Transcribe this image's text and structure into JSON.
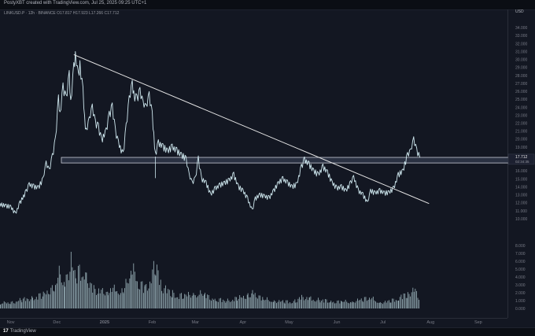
{
  "header": {
    "attribution": "PostyXBT created with TradingView.com, Jul 25, 2025 09:25 UTC+1",
    "symbol_line": "LINKUSD.P · 12h · BINANCE   O17.817  H17.923  L17.266  C17.712"
  },
  "currency": "USD",
  "footer": {
    "logo_mark": "17",
    "logo_text": "TradingView"
  },
  "chart_data": [
    {
      "type": "line",
      "title": "",
      "xlabel": "",
      "ylabel": "",
      "x_ticks": [
        "Nov",
        "Dec",
        "2025",
        "Feb",
        "Mar",
        "Apr",
        "May",
        "Jun",
        "Jul",
        "Aug",
        "Sep"
      ],
      "y_ticks": [
        "10.000",
        "11.000",
        "12.000",
        "13.000",
        "14.000",
        "15.000",
        "16.000",
        "17.000",
        "19.000",
        "20.000",
        "21.000",
        "22.000",
        "23.000",
        "24.000",
        "25.000",
        "26.000",
        "27.000",
        "28.000",
        "29.000",
        "30.000",
        "31.000",
        "32.000",
        "33.000",
        "34.000"
      ],
      "ylim": [
        9.5,
        34.5
      ],
      "x_range_months": [
        "2024-10-25",
        "2025-09-20"
      ],
      "series": [
        {
          "values": [
            [
              "2024-10-25",
              11.8
            ],
            [
              "2024-10-29",
              11.6
            ],
            [
              "2024-11-01",
              11.5
            ],
            [
              "2024-11-04",
              10.6
            ],
            [
              "2024-11-07",
              12.0
            ],
            [
              "2024-11-11",
              13.4
            ],
            [
              "2024-11-13",
              14.3
            ],
            [
              "2024-11-16",
              14.0
            ],
            [
              "2024-11-19",
              13.9
            ],
            [
              "2024-11-22",
              15.0
            ],
            [
              "2024-11-24",
              17.0
            ],
            [
              "2024-11-26",
              16.0
            ],
            [
              "2024-11-28",
              17.8
            ],
            [
              "2024-11-30",
              19.8
            ],
            [
              "2024-12-02",
              25.0
            ],
            [
              "2024-12-03",
              23.0
            ],
            [
              "2024-12-05",
              26.5
            ],
            [
              "2024-12-07",
              25.0
            ],
            [
              "2024-12-09",
              28.0
            ],
            [
              "2024-12-10",
              24.5
            ],
            [
              "2024-12-12",
              29.0
            ],
            [
              "2024-12-13",
              30.5
            ],
            [
              "2024-12-15",
              28.0
            ],
            [
              "2024-12-16",
              29.2
            ],
            [
              "2024-12-18",
              26.0
            ],
            [
              "2024-12-19",
              22.5
            ],
            [
              "2024-12-20",
              21.0
            ],
            [
              "2024-12-22",
              22.5
            ],
            [
              "2024-12-24",
              24.0
            ],
            [
              "2024-12-26",
              22.0
            ],
            [
              "2024-12-28",
              21.5
            ],
            [
              "2024-12-30",
              19.8
            ],
            [
              "2025-01-02",
              21.0
            ],
            [
              "2025-01-04",
              23.0
            ],
            [
              "2025-01-06",
              24.0
            ],
            [
              "2025-01-08",
              21.0
            ],
            [
              "2025-01-10",
              19.5
            ],
            [
              "2025-01-13",
              18.0
            ],
            [
              "2025-01-15",
              21.5
            ],
            [
              "2025-01-17",
              25.0
            ],
            [
              "2025-01-19",
              27.0
            ],
            [
              "2025-01-20",
              25.5
            ],
            [
              "2025-01-22",
              25.0
            ],
            [
              "2025-01-24",
              26.0
            ],
            [
              "2025-01-26",
              24.5
            ],
            [
              "2025-01-28",
              24.0
            ],
            [
              "2025-01-30",
              25.5
            ],
            [
              "2025-02-01",
              23.0
            ],
            [
              "2025-02-02",
              20.5
            ],
            [
              "2025-02-03",
              18.0
            ],
            [
              "2025-02-05",
              19.5
            ],
            [
              "2025-02-08",
              19.0
            ],
            [
              "2025-02-11",
              18.5
            ],
            [
              "2025-02-14",
              19.0
            ],
            [
              "2025-02-17",
              18.5
            ],
            [
              "2025-02-20",
              18.0
            ],
            [
              "2025-02-23",
              17.5
            ],
            [
              "2025-02-25",
              15.5
            ],
            [
              "2025-02-27",
              14.5
            ],
            [
              "2025-03-01",
              15.0
            ],
            [
              "2025-03-03",
              17.5
            ],
            [
              "2025-03-05",
              15.0
            ],
            [
              "2025-03-08",
              14.5
            ],
            [
              "2025-03-11",
              13.0
            ],
            [
              "2025-03-14",
              13.8
            ],
            [
              "2025-03-17",
              14.2
            ],
            [
              "2025-03-20",
              14.5
            ],
            [
              "2025-03-23",
              14.8
            ],
            [
              "2025-03-26",
              15.5
            ],
            [
              "2025-03-29",
              14.0
            ],
            [
              "2025-04-01",
              13.5
            ],
            [
              "2025-04-04",
              12.5
            ],
            [
              "2025-04-07",
              11.0
            ],
            [
              "2025-04-09",
              12.5
            ],
            [
              "2025-04-12",
              13.0
            ],
            [
              "2025-04-15",
              12.8
            ],
            [
              "2025-04-18",
              12.6
            ],
            [
              "2025-04-21",
              13.5
            ],
            [
              "2025-04-24",
              14.5
            ],
            [
              "2025-04-27",
              15.0
            ],
            [
              "2025-04-30",
              14.5
            ],
            [
              "2025-05-03",
              14.0
            ],
            [
              "2025-05-06",
              14.3
            ],
            [
              "2025-05-09",
              16.5
            ],
            [
              "2025-05-11",
              17.4
            ],
            [
              "2025-05-14",
              16.8
            ],
            [
              "2025-05-17",
              16.0
            ],
            [
              "2025-05-20",
              15.5
            ],
            [
              "2025-05-23",
              16.5
            ],
            [
              "2025-05-26",
              15.8
            ],
            [
              "2025-05-29",
              14.5
            ],
            [
              "2025-06-01",
              13.8
            ],
            [
              "2025-06-04",
              14.0
            ],
            [
              "2025-06-07",
              13.5
            ],
            [
              "2025-06-10",
              14.5
            ],
            [
              "2025-06-12",
              15.2
            ],
            [
              "2025-06-15",
              13.5
            ],
            [
              "2025-06-18",
              13.0
            ],
            [
              "2025-06-21",
              12.0
            ],
            [
              "2025-06-23",
              13.5
            ],
            [
              "2025-06-26",
              13.2
            ],
            [
              "2025-06-29",
              13.5
            ],
            [
              "2025-07-02",
              13.2
            ],
            [
              "2025-07-05",
              13.3
            ],
            [
              "2025-07-08",
              13.8
            ],
            [
              "2025-07-11",
              15.5
            ],
            [
              "2025-07-14",
              16.0
            ],
            [
              "2025-07-17",
              18.0
            ],
            [
              "2025-07-19",
              18.5
            ],
            [
              "2025-07-21",
              20.0
            ],
            [
              "2025-07-23",
              18.5
            ],
            [
              "2025-07-25",
              17.7
            ]
          ]
        }
      ],
      "volume": {
        "ylim": [
          0,
          8.5
        ],
        "y_ticks": [
          "0.000",
          "1.000",
          "2.000",
          "3.000",
          "4.000",
          "5.000",
          "6.000",
          "7.000",
          "8.000"
        ],
        "values": [
          [
            "2024-10-25",
            0.9
          ],
          [
            "2024-11-01",
            1.0
          ],
          [
            "2024-11-08",
            1.4
          ],
          [
            "2024-11-15",
            1.8
          ],
          [
            "2024-11-22",
            2.2
          ],
          [
            "2024-11-29",
            3.8
          ],
          [
            "2024-12-03",
            5.8
          ],
          [
            "2024-12-06",
            4.6
          ],
          [
            "2024-12-10",
            7.6
          ],
          [
            "2024-12-13",
            5.2
          ],
          [
            "2024-12-17",
            6.5
          ],
          [
            "2024-12-20",
            5.4
          ],
          [
            "2024-12-24",
            3.5
          ],
          [
            "2024-12-28",
            2.8
          ],
          [
            "2025-01-03",
            3.0
          ],
          [
            "2025-01-08",
            3.2
          ],
          [
            "2025-01-13",
            2.6
          ],
          [
            "2025-01-18",
            6.8
          ],
          [
            "2025-01-22",
            4.8
          ],
          [
            "2025-01-27",
            3.2
          ],
          [
            "2025-02-03",
            6.8
          ],
          [
            "2025-02-07",
            3.6
          ],
          [
            "2025-02-14",
            2.4
          ],
          [
            "2025-02-21",
            2.0
          ],
          [
            "2025-02-28",
            2.6
          ],
          [
            "2025-03-07",
            2.2
          ],
          [
            "2025-03-14",
            1.5
          ],
          [
            "2025-03-21",
            1.3
          ],
          [
            "2025-03-28",
            1.6
          ],
          [
            "2025-04-04",
            2.2
          ],
          [
            "2025-04-07",
            2.8
          ],
          [
            "2025-04-14",
            1.5
          ],
          [
            "2025-04-21",
            1.3
          ],
          [
            "2025-04-28",
            1.1
          ],
          [
            "2025-05-05",
            1.2
          ],
          [
            "2025-05-09",
            2.0
          ],
          [
            "2025-05-14",
            1.6
          ],
          [
            "2025-05-21",
            1.4
          ],
          [
            "2025-05-28",
            1.2
          ],
          [
            "2025-06-04",
            1.1
          ],
          [
            "2025-06-11",
            1.2
          ],
          [
            "2025-06-18",
            1.5
          ],
          [
            "2025-06-22",
            1.8
          ],
          [
            "2025-06-29",
            1.0
          ],
          [
            "2025-07-06",
            1.2
          ],
          [
            "2025-07-11",
            1.8
          ],
          [
            "2025-07-17",
            2.4
          ],
          [
            "2025-07-21",
            3.3
          ],
          [
            "2025-07-25",
            1.6
          ]
        ]
      },
      "annotations": {
        "trendline": {
          "start": [
            "2024-12-12",
            30.6
          ],
          "end": [
            "2025-07-31",
            11.9
          ]
        },
        "support_zone": {
          "from": 17.0,
          "to": 17.7
        },
        "wick": {
          "date": "2025-02-03",
          "low": 15.1,
          "high": 17.8
        }
      },
      "last_price": {
        "label": "17.712",
        "countdown": "02:34:35",
        "value": 17.712
      },
      "colors": {
        "background": "#131722",
        "price_line": "#cfe8ef",
        "trendline": "#e6e6e6",
        "zone_fill": "#2a3142",
        "zone_stroke": "#c8ccd6",
        "volume_bar": "#b9d6dc",
        "axis_text": "#787b86",
        "last_price_bg": "#1c2030"
      }
    }
  ]
}
